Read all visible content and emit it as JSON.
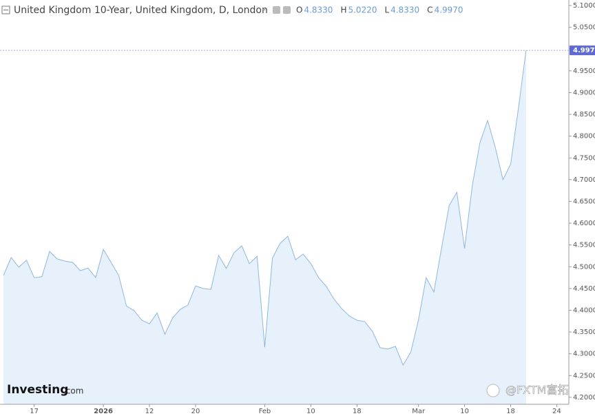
{
  "chart_data": {
    "type": "area",
    "title": "United Kingdom 10-Year, United Kingdom, D, London",
    "ohlc": [
      {
        "name": "O",
        "value": {
          "value": 4.833,
          "label": "4.8330"
        }
      },
      {
        "name": "H",
        "value": {
          "value": 5.022,
          "label": "5.0220"
        }
      },
      {
        "name": "L",
        "value": {
          "value": 4.833,
          "label": "4.8330"
        }
      },
      {
        "name": "C",
        "value": {
          "value": 4.997,
          "label": "4.9970"
        }
      }
    ],
    "last_price": {
      "value": 4.997,
      "label": "4.9970"
    },
    "brand": "Investing",
    "brand_suffix": ".com",
    "source_credit": "@FXTM富拓",
    "color": "#90b6de",
    "fill": "#e6f1fb",
    "categories": [
      null,
      null,
      null,
      null,
      "17",
      null,
      null,
      null,
      null,
      null,
      null,
      null,
      null,
      "2026",
      null,
      null,
      null,
      null,
      null,
      "12",
      null,
      null,
      null,
      null,
      null,
      "20",
      null,
      null,
      null,
      null,
      null,
      null,
      null,
      null,
      "Feb",
      null,
      null,
      null,
      null,
      null,
      "10",
      null,
      null,
      null,
      null,
      null,
      "18",
      null,
      null,
      null,
      null,
      null,
      null,
      null,
      "Mar",
      null,
      null,
      null,
      null,
      null,
      "10",
      null,
      null,
      null,
      null,
      null,
      "18",
      null,
      null,
      null,
      null,
      null,
      "24"
    ],
    "values": [
      4.48,
      4.521,
      4.499,
      4.515,
      4.475,
      4.477,
      4.535,
      4.518,
      4.513,
      4.51,
      4.491,
      4.497,
      4.475,
      4.54,
      4.51,
      4.48,
      4.41,
      4.399,
      4.377,
      4.369,
      4.394,
      4.345,
      4.382,
      4.402,
      4.412,
      4.456,
      4.45,
      4.448,
      4.526,
      4.496,
      4.532,
      4.548,
      4.507,
      4.524,
      4.315,
      4.52,
      4.554,
      4.57,
      4.516,
      4.529,
      4.507,
      4.475,
      4.455,
      4.426,
      4.404,
      4.387,
      4.377,
      4.374,
      4.352,
      4.314,
      4.311,
      4.317,
      4.274,
      4.304,
      4.377,
      4.475,
      4.442,
      4.542,
      4.641,
      4.671,
      4.542,
      4.686,
      4.785,
      4.836,
      4.774,
      4.7,
      4.736,
      4.863,
      4.997,
      null,
      null,
      null,
      null
    ],
    "ylim": [
      4.184,
      5.1127
    ],
    "yticks": [
      {
        "value": 4.2,
        "label": "4.2000"
      },
      {
        "value": 4.25,
        "label": "4.2500"
      },
      {
        "value": 4.3,
        "label": "4.3000"
      },
      {
        "value": 4.35,
        "label": "4.3500"
      },
      {
        "value": 4.4,
        "label": "4.4000"
      },
      {
        "value": 4.45,
        "label": "4.4500"
      },
      {
        "value": 4.5,
        "label": "4.5000"
      },
      {
        "value": 4.55,
        "label": "4.5500"
      },
      {
        "value": 4.6,
        "label": "4.6000"
      },
      {
        "value": 4.65,
        "label": "4.6500"
      },
      {
        "value": 4.7,
        "label": "4.7000"
      },
      {
        "value": 4.75,
        "label": "4.7500"
      },
      {
        "value": 4.8,
        "label": "4.8000"
      },
      {
        "value": 4.85,
        "label": "4.8500"
      },
      {
        "value": 4.9,
        "label": "4.9000"
      },
      {
        "value": 4.95,
        "label": "4.9500"
      },
      {
        "value": 5.0,
        "label": "5.0000"
      },
      {
        "value": 5.05,
        "label": "5.0500"
      },
      {
        "value": 5.1,
        "label": "5.1000"
      }
    ],
    "grid": false
  }
}
